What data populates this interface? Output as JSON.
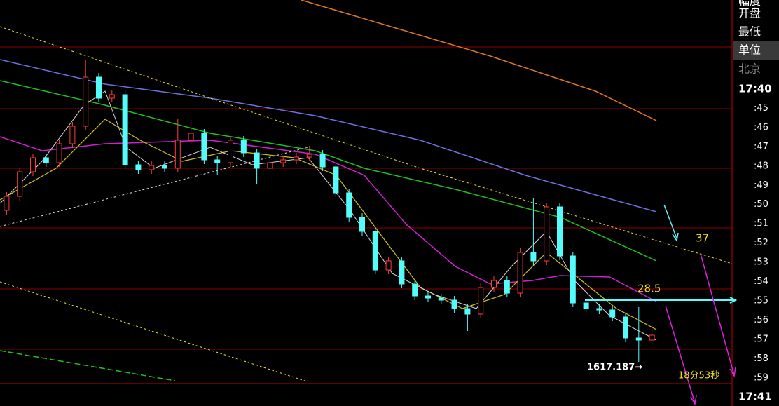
{
  "sidebar": {
    "labels": [
      "幅度",
      "开盘",
      "最低",
      "单位",
      "北京"
    ],
    "times": [
      "17:40",
      ":45",
      ":46",
      ":47",
      ":48",
      ":49",
      ":50",
      ":51",
      ":52",
      ":53",
      ":54",
      ":55",
      ":56",
      ":57",
      ":58",
      ":59",
      "17:41"
    ]
  },
  "annotations": [
    "37",
    "28.5",
    "1617.187→",
    "18分53秒"
  ],
  "chart_data": {
    "type": "candlestick",
    "up_color": "#ff3c3c",
    "down_color": "#54fcfc",
    "ylim": [
      1614,
      1643
    ],
    "open": [
      1628,
      1629,
      1630.75,
      1631.75,
      1631.4,
      1632.75,
      1634,
      1637.5,
      1636,
      1636.25,
      1631.25,
      1630.9,
      1631.2,
      1631,
      1633,
      1633.5,
      1631.6,
      1631.4,
      1633,
      1632.1,
      1631,
      1631.4,
      1631.6,
      1631.8,
      1632,
      1631.1,
      1629.25,
      1627.5,
      1626.5,
      1623.75,
      1624.4,
      1622.75,
      1621.9,
      1621.75,
      1621.6,
      1621,
      1620.6,
      1622.5,
      1623,
      1622.1,
      1625,
      1624.4,
      1628.25,
      1624.75,
      1621.4,
      1621,
      1620.9,
      1620.4,
      1618.9,
      1618.75
    ],
    "high": [
      1629.3,
      1631.05,
      1632.05,
      1632.05,
      1633.05,
      1634.3,
      1638.75,
      1637.8,
      1636.55,
      1636.55,
      1631.55,
      1631.5,
      1631.5,
      1634.5,
      1634.5,
      1633.8,
      1631.9,
      1633.3,
      1633.3,
      1632.4,
      1631.7,
      1631.9,
      1632.1,
      1632.6,
      1632.3,
      1631.4,
      1629.55,
      1627.8,
      1626.8,
      1624.7,
      1624.7,
      1623.05,
      1622.2,
      1622.05,
      1621.9,
      1621.3,
      1622.8,
      1623.3,
      1623.3,
      1625.3,
      1628.9,
      1628.55,
      1628.55,
      1625.05,
      1621.7,
      1621.3,
      1621.2,
      1620.7,
      1621.1,
      1619.8
    ],
    "low": [
      1627.7,
      1628.7,
      1630.45,
      1631.1,
      1631.1,
      1632.45,
      1633.7,
      1635.7,
      1635.7,
      1630.95,
      1630.6,
      1630.6,
      1630.7,
      1630.7,
      1632.7,
      1631.3,
      1630.5,
      1631.1,
      1631.8,
      1629.9,
      1630.7,
      1631.1,
      1631.3,
      1631.5,
      1630.8,
      1628.95,
      1627.2,
      1626.2,
      1623.45,
      1623.45,
      1622.45,
      1621.6,
      1621.45,
      1621.3,
      1620.7,
      1619.4,
      1620.3,
      1622.2,
      1621.8,
      1621.8,
      1624.1,
      1624.1,
      1624.45,
      1621.1,
      1620.7,
      1620.6,
      1620.1,
      1618.6,
      1617.2,
      1618.45
    ],
    "close": [
      1629,
      1630.75,
      1631.75,
      1631.4,
      1632.75,
      1634,
      1637.5,
      1636,
      1636.25,
      1631.25,
      1630.9,
      1631.2,
      1631,
      1633,
      1633.5,
      1631.6,
      1631.4,
      1633,
      1632.1,
      1631,
      1631.4,
      1631.6,
      1631.8,
      1632,
      1631.1,
      1629.25,
      1627.5,
      1626.5,
      1623.75,
      1624.4,
      1622.75,
      1621.9,
      1621.75,
      1621.6,
      1621,
      1620.6,
      1622.5,
      1623,
      1622.1,
      1625,
      1624.4,
      1628.25,
      1624.75,
      1621.4,
      1621,
      1620.9,
      1620.4,
      1618.9,
      1618.75,
      1619.1
    ]
  }
}
